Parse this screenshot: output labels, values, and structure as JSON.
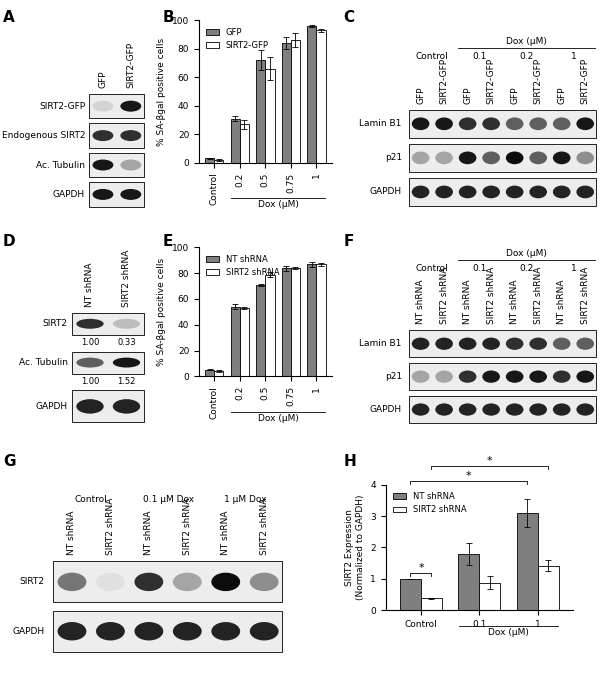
{
  "chart_data": [
    {
      "panel": "B",
      "type": "bar",
      "categories": [
        "Control",
        "0.2",
        "0.5",
        "0.75",
        "1"
      ],
      "x_group": {
        "text": "Dox (μM)",
        "from": 1,
        "to": 4
      },
      "ylabel": "% SA-βgal positive cells",
      "ylim": [
        0,
        100
      ],
      "yticks": [
        0,
        20,
        40,
        60,
        80,
        100
      ],
      "legend": "upper left",
      "series": [
        {
          "name": "GFP",
          "color": "#7f7f7f",
          "values": [
            3,
            31,
            72,
            84,
            96
          ],
          "errors": [
            0.5,
            2,
            7,
            4,
            1
          ]
        },
        {
          "name": "SIRT2-GFP",
          "color": "#ffffff",
          "values": [
            2,
            27,
            66,
            86,
            93
          ],
          "errors": [
            0.5,
            3,
            8,
            5,
            1
          ]
        }
      ]
    },
    {
      "panel": "E",
      "type": "bar",
      "categories": [
        "Control",
        "0.2",
        "0.5",
        "0.75",
        "1"
      ],
      "x_group": {
        "text": "Dox (μM)",
        "from": 1,
        "to": 4
      },
      "ylabel": "% SA-βgal positive cells",
      "ylim": [
        0,
        100
      ],
      "yticks": [
        0,
        20,
        40,
        60,
        80,
        100
      ],
      "legend": "upper left",
      "series": [
        {
          "name": "NT shRNA",
          "color": "#7f7f7f",
          "values": [
            5,
            54,
            71,
            84,
            87
          ],
          "errors": [
            0.5,
            2,
            1,
            2,
            2
          ]
        },
        {
          "name": "SIRT2 shRNA",
          "color": "#ffffff",
          "values": [
            4,
            53,
            79,
            84,
            87
          ],
          "errors": [
            0.5,
            1,
            2,
            1,
            1
          ]
        }
      ]
    },
    {
      "panel": "H",
      "type": "bar",
      "categories": [
        "Control",
        "0.1",
        "1"
      ],
      "x_group": {
        "text": "Dox (μM)",
        "from": 1,
        "to": 2
      },
      "ylabel": "SIRT2 Expression\n(Normalized to GAPDH)",
      "ylim": [
        0,
        4
      ],
      "yticks": [
        0,
        1,
        2,
        3,
        4
      ],
      "legend": "upper left",
      "series": [
        {
          "name": "NT shRNA",
          "color": "#7f7f7f",
          "values": [
            1.0,
            1.8,
            3.1
          ],
          "errors": [
            0,
            0.35,
            0.45
          ]
        },
        {
          "name": "SIRT2 shRNA",
          "color": "#ffffff",
          "values": [
            0.38,
            0.88,
            1.42
          ],
          "errors": [
            0.02,
            0.2,
            0.18
          ]
        }
      ],
      "significance": [
        {
          "from": [
            0,
            0
          ],
          "to": [
            0,
            1
          ],
          "label": "*"
        },
        {
          "from": [
            0,
            0
          ],
          "to": [
            2,
            0
          ],
          "label": "*"
        },
        {
          "from": [
            0,
            1
          ],
          "to": [
            2,
            1
          ],
          "label": "*"
        }
      ]
    }
  ],
  "blots": [
    {
      "panel": "A",
      "lanes": [
        "GFP",
        "SIRT2-GFP"
      ],
      "rows": [
        {
          "name": "SIRT2-GFP",
          "intensity": [
            0.1,
            0.9
          ]
        },
        {
          "name": "Endogenous SIRT2",
          "intensity": [
            0.8,
            0.8
          ]
        },
        {
          "name": "Ac. Tubulin",
          "intensity": [
            0.9,
            0.3
          ]
        },
        {
          "name": "GAPDH",
          "intensity": [
            0.9,
            0.9
          ]
        }
      ]
    },
    {
      "panel": "C",
      "lanes": [
        "GFP",
        "SIRT2-GFP",
        "GFP",
        "SIRT2-GFP",
        "GFP",
        "SIRT2-GFP",
        "GFP",
        "SIRT2-GFP"
      ],
      "groups": [
        {
          "label": "Control",
          "lanes": [
            0,
            1
          ]
        },
        {
          "label": "0.1",
          "lanes": [
            2,
            3
          ]
        },
        {
          "label": "0.2",
          "lanes": [
            4,
            5
          ]
        },
        {
          "label": "1",
          "lanes": [
            6,
            7
          ]
        }
      ],
      "header": {
        "label": "Dox (μM)",
        "lanes": [
          2,
          7
        ]
      },
      "rows": [
        {
          "name": "Lamin B1",
          "intensity": [
            0.9,
            0.9,
            0.8,
            0.8,
            0.6,
            0.6,
            0.6,
            0.9
          ]
        },
        {
          "name": "p21",
          "intensity": [
            0.3,
            0.3,
            0.9,
            0.6,
            0.95,
            0.6,
            0.9,
            0.4
          ]
        },
        {
          "name": "GAPDH",
          "intensity": [
            0.85,
            0.85,
            0.85,
            0.85,
            0.85,
            0.85,
            0.85,
            0.85
          ]
        }
      ]
    },
    {
      "panel": "D",
      "lanes": [
        "NT shRNA",
        "SIRT2 shRNA"
      ],
      "rows": [
        {
          "name": "SIRT2",
          "intensity": [
            0.8,
            0.2
          ],
          "quant": [
            "1.00",
            "0.33"
          ]
        },
        {
          "name": "Ac. Tubulin",
          "intensity": [
            0.6,
            0.9
          ],
          "quant": [
            "1.00",
            "1.52"
          ]
        },
        {
          "name": "GAPDH",
          "intensity": [
            0.85,
            0.85
          ]
        }
      ]
    },
    {
      "panel": "F",
      "lanes": [
        "NT shRNA",
        "SIRT2 shRNA",
        "NT shRNA",
        "SIRT2 shRNA",
        "NT shRNA",
        "SIRT2 shRNA",
        "NT shRNA",
        "SIRT2 shRNA"
      ],
      "groups": [
        {
          "label": "Control",
          "lanes": [
            0,
            1
          ]
        },
        {
          "label": "0.1",
          "lanes": [
            2,
            3
          ]
        },
        {
          "label": "0.2",
          "lanes": [
            4,
            5
          ]
        },
        {
          "label": "1",
          "lanes": [
            6,
            7
          ]
        }
      ],
      "header": {
        "label": "Dox (μM)",
        "lanes": [
          2,
          7
        ]
      },
      "rows": [
        {
          "name": "Lamin B1",
          "intensity": [
            0.85,
            0.85,
            0.85,
            0.85,
            0.8,
            0.8,
            0.6,
            0.6
          ]
        },
        {
          "name": "p21",
          "intensity": [
            0.3,
            0.3,
            0.8,
            0.9,
            0.9,
            0.9,
            0.8,
            0.9
          ]
        },
        {
          "name": "GAPDH",
          "intensity": [
            0.85,
            0.85,
            0.85,
            0.85,
            0.85,
            0.85,
            0.85,
            0.85
          ]
        }
      ]
    },
    {
      "panel": "G",
      "lanes": [
        "NT shRNA",
        "SIRT2 shRNA",
        "NT shRNA",
        "SIRT2 shRNA",
        "NT shRNA",
        "SIRT2 shRNA"
      ],
      "groups": [
        {
          "label": "Control",
          "lanes": [
            0,
            1
          ]
        },
        {
          "label": "0.1 μM Dox",
          "lanes": [
            2,
            3
          ]
        },
        {
          "label": "1 μM Dox",
          "lanes": [
            4,
            5
          ]
        }
      ],
      "rows": [
        {
          "name": "SIRT2",
          "intensity": [
            0.5,
            0.05,
            0.8,
            0.3,
            0.95,
            0.4
          ]
        },
        {
          "name": "GAPDH",
          "intensity": [
            0.85,
            0.85,
            0.85,
            0.85,
            0.85,
            0.85
          ]
        }
      ]
    }
  ]
}
